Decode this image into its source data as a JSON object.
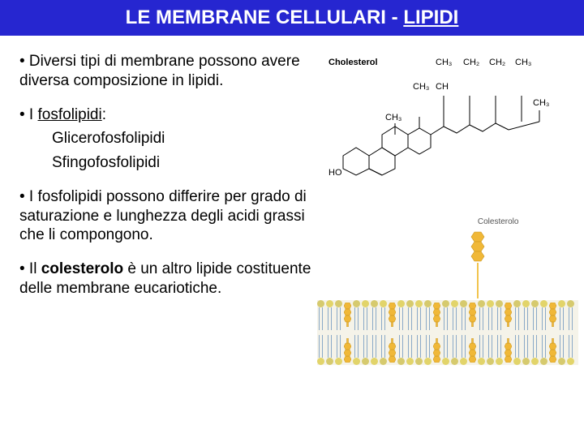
{
  "title": {
    "prefix": "LE MEMBRANE CELLULARI - ",
    "suffix": "LIPIDI"
  },
  "bullets": {
    "b1": "• Diversi tipi di membrane possono avere diversa composizione in lipidi.",
    "b2": {
      "lead": "• I ",
      "term": "fosfolipidi",
      "tail": ":"
    },
    "b2a": "Glicerofosfolipidi",
    "b2b": "Sfingofosfolipidi",
    "b3": "• I fosfolipidi possono differire per grado di saturazione e lunghezza degli acidi grassi che li compongono.",
    "b4": {
      "lead": "• Il ",
      "term": "colesterolo",
      "tail": " è un altro lipide costituente delle membrane eucariotiche."
    }
  },
  "chem": {
    "label": "Cholesterol",
    "groups": {
      "ch3": "CH₃",
      "ch2": "CH₂",
      "ch": "CH",
      "ho": "HO"
    }
  },
  "membrane": {
    "label": "Colesterolo",
    "head_color_a": "#e2d46a",
    "head_color_b": "#d6ca6e",
    "chol_color": "#f0b838",
    "columns": [
      "p",
      "p",
      "p",
      "c",
      "p",
      "p",
      "p",
      "p",
      "c",
      "p",
      "p",
      "p",
      "p",
      "c",
      "p",
      "p",
      "p",
      "c",
      "p",
      "p",
      "p",
      "c",
      "p",
      "p",
      "p",
      "p",
      "c",
      "p",
      "p"
    ]
  }
}
